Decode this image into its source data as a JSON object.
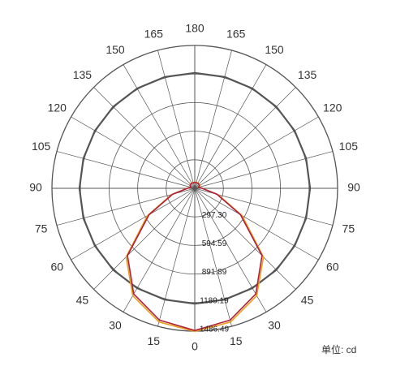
{
  "chart_data": {
    "type": "polar",
    "unit_label": "单位: cd",
    "x": [
      0,
      15,
      30,
      45,
      60,
      75,
      90,
      105,
      120,
      135,
      150,
      165,
      180
    ],
    "xticks": [
      0,
      15,
      30,
      45,
      60,
      75,
      90,
      105,
      120,
      135,
      150,
      165,
      180
    ],
    "rlim": [
      0,
      1486.49
    ],
    "rticks": [
      {
        "value": 297.3,
        "label": "297.30"
      },
      {
        "value": 594.59,
        "label": "594.59"
      },
      {
        "value": 891.89,
        "label": "891.89"
      },
      {
        "value": 1189.19,
        "label": "1189.19"
      },
      {
        "value": 1486.49,
        "label": "1486.49"
      }
    ],
    "grid": true,
    "series": [
      {
        "color": "#555555",
        "values": [
          1200,
          1200,
          1200,
          1200,
          1200,
          1200,
          1200,
          1200,
          1200,
          1200,
          1200,
          1200,
          1200
        ]
      },
      {
        "color": "#e8a020",
        "values": [
          1490,
          1440,
          1290,
          1010,
          570,
          250,
          80,
          40,
          60,
          65,
          65,
          65,
          65
        ]
      },
      {
        "color": "#b0203a",
        "values": [
          1480,
          1420,
          1270,
          990,
          550,
          240,
          75,
          40,
          55,
          60,
          60,
          60,
          60
        ]
      }
    ]
  }
}
